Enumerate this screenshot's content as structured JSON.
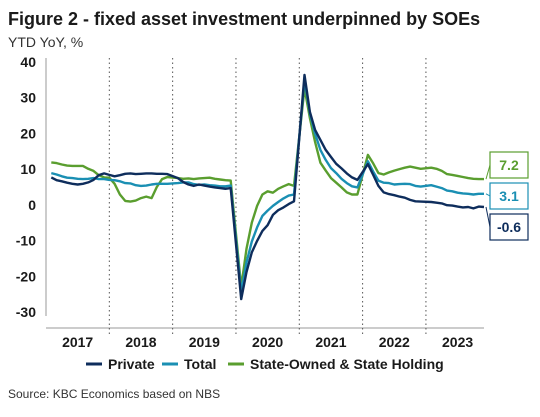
{
  "title": "Figure 2 - fixed asset investment underpinned by SOEs",
  "subtitle": "YTD YoY, %",
  "source": "Source: KBC Economics based on NBS",
  "chart_data": {
    "type": "line",
    "ylim": [
      -30,
      40
    ],
    "yticks": [
      40,
      30,
      20,
      10,
      0,
      -10,
      -20,
      -30
    ],
    "xlim": [
      2017,
      2023.917
    ],
    "xtick_labels": [
      "2017",
      "2018",
      "2019",
      "2020",
      "2021",
      "2022",
      "2023"
    ],
    "grid": false,
    "legend_position": "bottom",
    "end_labels": {
      "private": "-0.6",
      "total": "3.1",
      "soe": "7.2"
    },
    "series": [
      {
        "key": "private",
        "name": "Private",
        "color": "#0e2d5c",
        "points": [
          [
            2017.083,
            7.7
          ],
          [
            2017.167,
            6.9
          ],
          [
            2017.25,
            6.6
          ],
          [
            2017.333,
            6.2
          ],
          [
            2017.417,
            5.9
          ],
          [
            2017.5,
            5.7
          ],
          [
            2017.583,
            5.9
          ],
          [
            2017.667,
            6.3
          ],
          [
            2017.75,
            7.0
          ],
          [
            2017.833,
            8.3
          ],
          [
            2017.917,
            8.8
          ],
          [
            2018.0,
            8.4
          ],
          [
            2018.083,
            8.0
          ],
          [
            2018.167,
            8.3
          ],
          [
            2018.25,
            8.7
          ],
          [
            2018.333,
            8.8
          ],
          [
            2018.417,
            8.6
          ],
          [
            2018.5,
            8.7
          ],
          [
            2018.583,
            8.8
          ],
          [
            2018.667,
            8.8
          ],
          [
            2018.75,
            8.7
          ],
          [
            2018.833,
            8.7
          ],
          [
            2018.917,
            8.6
          ],
          [
            2019.083,
            7.5
          ],
          [
            2019.167,
            6.4
          ],
          [
            2019.25,
            5.7
          ],
          [
            2019.333,
            5.3
          ],
          [
            2019.417,
            5.7
          ],
          [
            2019.5,
            5.4
          ],
          [
            2019.583,
            5.1
          ],
          [
            2019.667,
            4.9
          ],
          [
            2019.75,
            4.7
          ],
          [
            2019.833,
            4.5
          ],
          [
            2019.917,
            4.7
          ],
          [
            2020.083,
            -26.4
          ],
          [
            2020.167,
            -18.8
          ],
          [
            2020.25,
            -13.3
          ],
          [
            2020.333,
            -10.1
          ],
          [
            2020.417,
            -7.3
          ],
          [
            2020.5,
            -5.7
          ],
          [
            2020.583,
            -2.8
          ],
          [
            2020.667,
            -1.5
          ],
          [
            2020.75,
            -0.7
          ],
          [
            2020.833,
            0.2
          ],
          [
            2020.917,
            1.0
          ],
          [
            2021.083,
            36.4
          ],
          [
            2021.167,
            26.0
          ],
          [
            2021.25,
            21.0
          ],
          [
            2021.333,
            18.2
          ],
          [
            2021.417,
            15.4
          ],
          [
            2021.5,
            13.4
          ],
          [
            2021.583,
            11.5
          ],
          [
            2021.667,
            10.2
          ],
          [
            2021.75,
            8.8
          ],
          [
            2021.833,
            7.7
          ],
          [
            2021.917,
            7.0
          ],
          [
            2022.083,
            11.4
          ],
          [
            2022.167,
            8.4
          ],
          [
            2022.25,
            5.3
          ],
          [
            2022.333,
            3.5
          ],
          [
            2022.417,
            3.0
          ],
          [
            2022.5,
            2.7
          ],
          [
            2022.583,
            2.3
          ],
          [
            2022.667,
            2.0
          ],
          [
            2022.75,
            1.4
          ],
          [
            2022.833,
            1.0
          ],
          [
            2022.917,
            0.9
          ],
          [
            2023.083,
            0.8
          ],
          [
            2023.167,
            0.6
          ],
          [
            2023.25,
            0.4
          ],
          [
            2023.333,
            -0.1
          ],
          [
            2023.417,
            -0.2
          ],
          [
            2023.5,
            -0.5
          ],
          [
            2023.583,
            -0.7
          ],
          [
            2023.667,
            -0.6
          ],
          [
            2023.75,
            -1.0
          ],
          [
            2023.833,
            -0.5
          ],
          [
            2023.917,
            -0.6
          ]
        ]
      },
      {
        "key": "total",
        "name": "Total",
        "color": "#1a8fb3",
        "points": [
          [
            2017.083,
            8.9
          ],
          [
            2017.167,
            8.5
          ],
          [
            2017.25,
            8.0
          ],
          [
            2017.333,
            7.6
          ],
          [
            2017.417,
            7.5
          ],
          [
            2017.5,
            7.3
          ],
          [
            2017.583,
            7.2
          ],
          [
            2017.667,
            7.3
          ],
          [
            2017.75,
            7.5
          ],
          [
            2017.833,
            7.2
          ],
          [
            2017.917,
            7.2
          ],
          [
            2018.0,
            7.0
          ],
          [
            2018.083,
            6.9
          ],
          [
            2018.167,
            6.6
          ],
          [
            2018.25,
            6.1
          ],
          [
            2018.333,
            6.0
          ],
          [
            2018.417,
            5.5
          ],
          [
            2018.5,
            5.3
          ],
          [
            2018.583,
            5.4
          ],
          [
            2018.667,
            5.7
          ],
          [
            2018.75,
            5.9
          ],
          [
            2018.833,
            5.9
          ],
          [
            2018.917,
            5.9
          ],
          [
            2019.083,
            6.1
          ],
          [
            2019.167,
            6.3
          ],
          [
            2019.25,
            6.3
          ],
          [
            2019.333,
            5.8
          ],
          [
            2019.417,
            5.6
          ],
          [
            2019.5,
            5.7
          ],
          [
            2019.583,
            5.5
          ],
          [
            2019.667,
            5.4
          ],
          [
            2019.75,
            5.2
          ],
          [
            2019.833,
            5.2
          ],
          [
            2019.917,
            5.4
          ],
          [
            2020.083,
            -24.5
          ],
          [
            2020.167,
            -16.1
          ],
          [
            2020.25,
            -10.3
          ],
          [
            2020.333,
            -6.3
          ],
          [
            2020.417,
            -3.1
          ],
          [
            2020.5,
            -1.6
          ],
          [
            2020.583,
            -0.3
          ],
          [
            2020.667,
            0.8
          ],
          [
            2020.75,
            1.8
          ],
          [
            2020.833,
            2.6
          ],
          [
            2020.917,
            2.9
          ],
          [
            2021.083,
            35.0
          ],
          [
            2021.167,
            25.6
          ],
          [
            2021.25,
            19.9
          ],
          [
            2021.333,
            15.4
          ],
          [
            2021.417,
            12.6
          ],
          [
            2021.5,
            10.3
          ],
          [
            2021.583,
            8.9
          ],
          [
            2021.667,
            7.3
          ],
          [
            2021.75,
            6.1
          ],
          [
            2021.833,
            5.2
          ],
          [
            2021.917,
            4.9
          ],
          [
            2022.083,
            12.2
          ],
          [
            2022.167,
            9.3
          ],
          [
            2022.25,
            6.8
          ],
          [
            2022.333,
            6.2
          ],
          [
            2022.417,
            6.1
          ],
          [
            2022.5,
            5.7
          ],
          [
            2022.583,
            5.8
          ],
          [
            2022.667,
            5.9
          ],
          [
            2022.75,
            5.8
          ],
          [
            2022.833,
            5.3
          ],
          [
            2022.917,
            5.1
          ],
          [
            2023.083,
            5.5
          ],
          [
            2023.167,
            5.1
          ],
          [
            2023.25,
            4.7
          ],
          [
            2023.333,
            4.0
          ],
          [
            2023.417,
            3.8
          ],
          [
            2023.5,
            3.4
          ],
          [
            2023.583,
            3.2
          ],
          [
            2023.667,
            3.1
          ],
          [
            2023.75,
            2.9
          ],
          [
            2023.833,
            3.1
          ],
          [
            2023.917,
            3.1
          ]
        ]
      },
      {
        "key": "soe",
        "name": "State-Owned & State Holding",
        "color": "#5a9e2f",
        "points": [
          [
            2017.083,
            11.9
          ],
          [
            2017.167,
            11.7
          ],
          [
            2017.25,
            11.3
          ],
          [
            2017.333,
            11.0
          ],
          [
            2017.417,
            10.9
          ],
          [
            2017.5,
            10.9
          ],
          [
            2017.583,
            10.9
          ],
          [
            2017.667,
            10.1
          ],
          [
            2017.75,
            9.5
          ],
          [
            2017.833,
            8.3
          ],
          [
            2017.917,
            7.7
          ],
          [
            2018.0,
            7.6
          ],
          [
            2018.083,
            5.9
          ],
          [
            2018.167,
            2.9
          ],
          [
            2018.25,
            1.1
          ],
          [
            2018.333,
            0.9
          ],
          [
            2018.417,
            1.2
          ],
          [
            2018.5,
            1.9
          ],
          [
            2018.583,
            2.3
          ],
          [
            2018.667,
            1.9
          ],
          [
            2018.75,
            5.0
          ],
          [
            2018.833,
            7.2
          ],
          [
            2018.917,
            7.8
          ],
          [
            2019.083,
            7.5
          ],
          [
            2019.167,
            7.3
          ],
          [
            2019.25,
            7.4
          ],
          [
            2019.333,
            7.2
          ],
          [
            2019.417,
            7.4
          ],
          [
            2019.5,
            7.5
          ],
          [
            2019.583,
            7.6
          ],
          [
            2019.667,
            7.3
          ],
          [
            2019.75,
            7.1
          ],
          [
            2019.833,
            6.9
          ],
          [
            2019.917,
            6.8
          ],
          [
            2020.083,
            -23.0
          ],
          [
            2020.167,
            -12.3
          ],
          [
            2020.25,
            -5.0
          ],
          [
            2020.333,
            -0.3
          ],
          [
            2020.417,
            2.9
          ],
          [
            2020.5,
            3.8
          ],
          [
            2020.583,
            3.4
          ],
          [
            2020.667,
            4.5
          ],
          [
            2020.75,
            5.2
          ],
          [
            2020.833,
            5.8
          ],
          [
            2020.917,
            5.3
          ],
          [
            2021.083,
            32.7
          ],
          [
            2021.167,
            24.3
          ],
          [
            2021.25,
            17.6
          ],
          [
            2021.333,
            11.8
          ],
          [
            2021.417,
            9.6
          ],
          [
            2021.5,
            7.5
          ],
          [
            2021.583,
            6.2
          ],
          [
            2021.667,
            4.9
          ],
          [
            2021.75,
            3.5
          ],
          [
            2021.833,
            2.9
          ],
          [
            2021.917,
            2.9
          ],
          [
            2022.083,
            14.0
          ],
          [
            2022.167,
            11.6
          ],
          [
            2022.25,
            8.9
          ],
          [
            2022.333,
            8.5
          ],
          [
            2022.417,
            9.1
          ],
          [
            2022.5,
            9.6
          ],
          [
            2022.583,
            10.0
          ],
          [
            2022.667,
            10.4
          ],
          [
            2022.75,
            10.7
          ],
          [
            2022.833,
            10.4
          ],
          [
            2022.917,
            10.1
          ],
          [
            2023.083,
            10.4
          ],
          [
            2023.167,
            10.1
          ],
          [
            2023.25,
            9.5
          ],
          [
            2023.333,
            8.6
          ],
          [
            2023.417,
            8.4
          ],
          [
            2023.5,
            8.1
          ],
          [
            2023.583,
            7.8
          ],
          [
            2023.667,
            7.5
          ],
          [
            2023.75,
            7.3
          ],
          [
            2023.833,
            7.2
          ],
          [
            2023.917,
            7.2
          ]
        ]
      }
    ]
  }
}
